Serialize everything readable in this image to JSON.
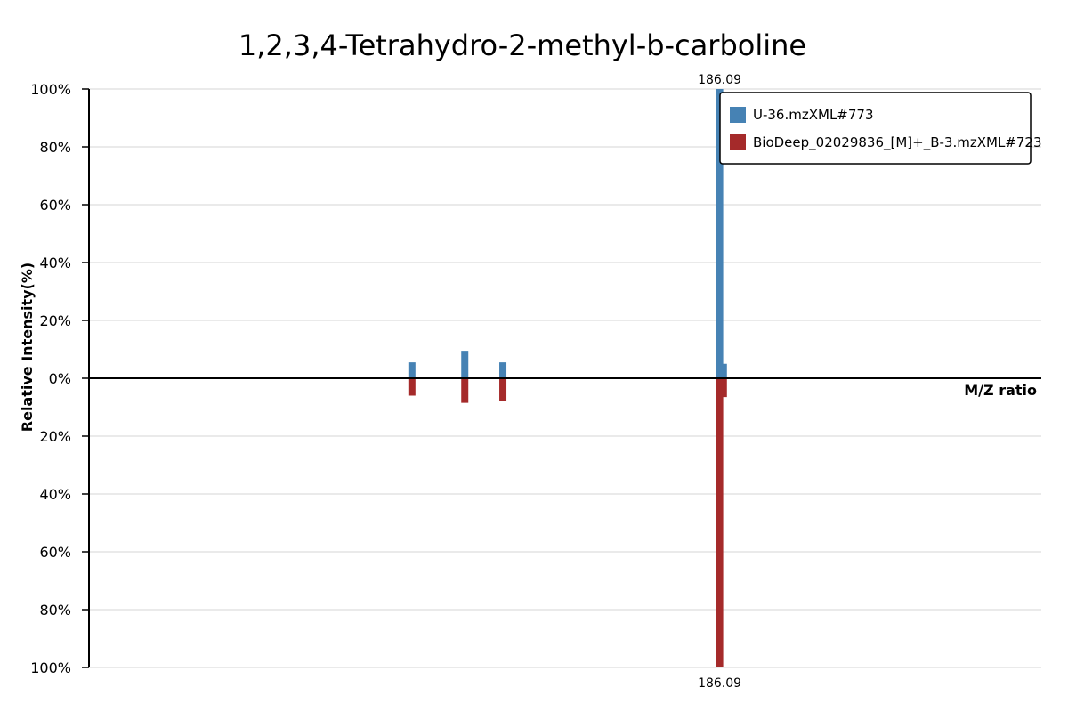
{
  "chart_data": {
    "type": "bar",
    "title": "1,2,3,4-Tetrahydro-2-methyl-b-carboline",
    "xlabel": "M/Z ratio",
    "ylabel": "Relative Intensity(%)",
    "ylim_top": [
      0,
      100
    ],
    "ylim_bottom": [
      0,
      100
    ],
    "y_ticks_top": [
      "100%",
      "80%",
      "60%",
      "40%",
      "20%",
      "0%"
    ],
    "y_ticks_bottom": [
      "20%",
      "40%",
      "60%",
      "80%",
      "100%"
    ],
    "y_tick_values_top": [
      100,
      80,
      60,
      40,
      20,
      0
    ],
    "y_tick_values_bottom": [
      20,
      40,
      60,
      80,
      100
    ],
    "xlim": [
      100,
      230
    ],
    "grid": true,
    "legend_position": "top-right",
    "series": [
      {
        "name": "U-36.mzXML#773",
        "color": "#4682b4",
        "direction": "up",
        "peaks": [
          {
            "mz": 144.08,
            "intensity": 5.5
          },
          {
            "mz": 151.3,
            "intensity": 9.5
          },
          {
            "mz": 156.5,
            "intensity": 5.5
          },
          {
            "mz": 186.09,
            "intensity": 100,
            "label": "186.09"
          },
          {
            "mz": 186.6,
            "intensity": 5.0
          }
        ]
      },
      {
        "name": "BioDeep_02029836_[M]+_B-3.mzXML#723",
        "color": "#a52a2a",
        "direction": "down",
        "peaks": [
          {
            "mz": 144.08,
            "intensity": 6.0
          },
          {
            "mz": 151.3,
            "intensity": 8.5
          },
          {
            "mz": 156.5,
            "intensity": 8.0
          },
          {
            "mz": 186.09,
            "intensity": 100,
            "label": "186.09"
          },
          {
            "mz": 186.6,
            "intensity": 6.5
          }
        ]
      }
    ]
  }
}
